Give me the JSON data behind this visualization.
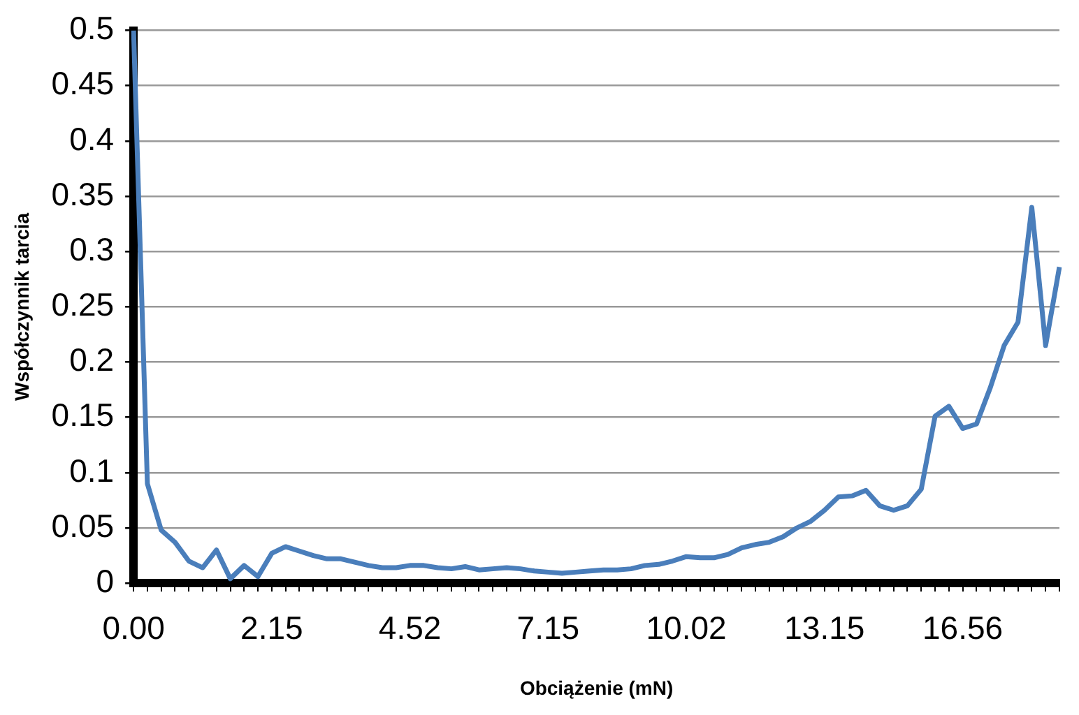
{
  "chart_data": {
    "type": "line",
    "xlabel": "Obciążenie (mN)",
    "ylabel": "Współczynnik tarcia",
    "categories": [
      "0.00",
      null,
      null,
      null,
      null,
      null,
      null,
      null,
      null,
      null,
      "2.15",
      null,
      null,
      null,
      null,
      null,
      null,
      null,
      null,
      null,
      "4.52",
      null,
      null,
      null,
      null,
      null,
      null,
      null,
      null,
      null,
      "7.15",
      null,
      null,
      null,
      null,
      null,
      null,
      null,
      null,
      null,
      "10.02",
      null,
      null,
      null,
      null,
      null,
      null,
      null,
      null,
      null,
      "13.15",
      null,
      null,
      null,
      null,
      null,
      null,
      null,
      null,
      null,
      "16.56",
      null,
      null,
      null,
      null,
      null,
      null,
      null
    ],
    "series": [
      {
        "color": "#4a7ebb",
        "values": [
          0.5,
          0.09,
          0.048,
          0.037,
          0.02,
          0.014,
          0.03,
          0.004,
          0.016,
          0.006,
          0.027,
          0.033,
          0.029,
          0.025,
          0.022,
          0.022,
          0.019,
          0.016,
          0.014,
          0.014,
          0.016,
          0.016,
          0.014,
          0.013,
          0.015,
          0.012,
          0.013,
          0.014,
          0.013,
          0.011,
          0.01,
          0.009,
          0.01,
          0.011,
          0.012,
          0.012,
          0.013,
          0.016,
          0.017,
          0.02,
          0.024,
          0.023,
          0.023,
          0.026,
          0.032,
          0.035,
          0.037,
          0.042,
          0.05,
          0.056,
          0.066,
          0.078,
          0.079,
          0.084,
          0.07,
          0.066,
          0.07,
          0.085,
          0.151,
          0.16,
          0.14,
          0.144,
          0.177,
          0.215,
          0.236,
          0.34,
          0.215,
          0.286
        ]
      }
    ],
    "ylim": [
      0,
      0.5
    ],
    "yticks": [
      0,
      0.05,
      0.1,
      0.15,
      0.2,
      0.25,
      0.3,
      0.35,
      0.4,
      0.45,
      0.5
    ],
    "grid": "y",
    "legend": false,
    "marker": "none",
    "line_style": "solid"
  }
}
